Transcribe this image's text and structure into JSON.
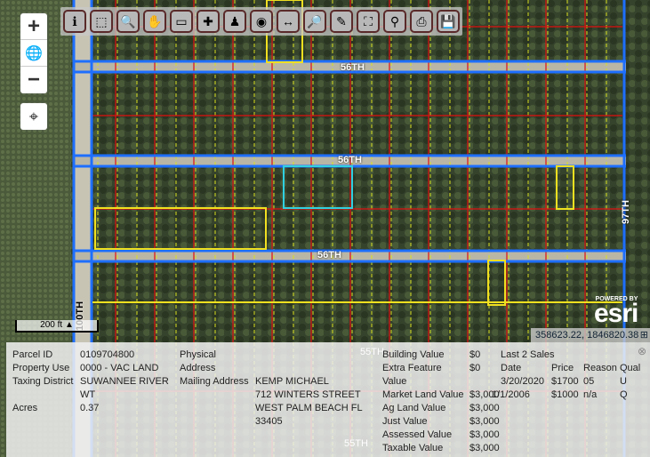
{
  "toolbar": {
    "buttons": [
      {
        "name": "info-icon",
        "glyph": "ℹ"
      },
      {
        "name": "select-icon",
        "glyph": "⬚"
      },
      {
        "name": "zoom-in-icon",
        "glyph": "🔍"
      },
      {
        "name": "pan-hand-icon",
        "glyph": "✋"
      },
      {
        "name": "eraser-icon",
        "glyph": "▭"
      },
      {
        "name": "add-selection-icon",
        "glyph": "✚"
      },
      {
        "name": "street-view-icon",
        "glyph": "♟"
      },
      {
        "name": "globe-icon",
        "glyph": "◉"
      },
      {
        "name": "measure-icon",
        "glyph": "↔"
      },
      {
        "name": "zoom-xy-icon",
        "glyph": "🔎"
      },
      {
        "name": "pencil-icon",
        "glyph": "✎"
      },
      {
        "name": "full-extent-icon",
        "glyph": "⛶"
      },
      {
        "name": "find-icon",
        "glyph": "⚲"
      },
      {
        "name": "print-icon",
        "glyph": "⎙"
      },
      {
        "name": "save-icon",
        "glyph": "💾"
      }
    ]
  },
  "zoom": {
    "plus": "+",
    "globe": "🌐",
    "minus": "−",
    "locate": "⌖"
  },
  "roads": {
    "r1": "56TH",
    "r2": "56TH",
    "r3": "56TH",
    "r4": "97TH",
    "r5": "100TH",
    "r6": "55TH",
    "r7": "55TH"
  },
  "scale": "200 ft",
  "attribution": {
    "powered": "POWERED BY",
    "logo": "esri"
  },
  "coordinates": "358623.22, 1846820.38",
  "coords_toggle": "⊞",
  "panel": {
    "labels": {
      "parcel_id": "Parcel ID",
      "property_use": "Property Use",
      "taxing_district": "Taxing District",
      "acres": "Acres",
      "physical_1": "Physical",
      "physical_2": "Address",
      "mailing": "Mailing Address"
    },
    "values": {
      "parcel_id": "0109704800",
      "property_use": "0000 - VAC LAND",
      "taxing_1": "SUWANNEE RIVER",
      "taxing_2": "WT",
      "acres": "0.37",
      "mail_1": "KEMP MICHAEL",
      "mail_2": "712 WINTERS STREET",
      "mail_3": "WEST PALM BEACH FL",
      "mail_4": "33405"
    },
    "valuation": [
      {
        "label": "Building Value",
        "value": "$0"
      },
      {
        "label": "Extra Feature",
        "value": "$0"
      },
      {
        "label": "Value",
        "value": ""
      },
      {
        "label": "Market Land Value",
        "value": "$3,000"
      },
      {
        "label": "Ag Land Value",
        "value": "$3,000"
      },
      {
        "label": "Just Value",
        "value": "$3,000"
      },
      {
        "label": "Assessed Value",
        "value": "$3,000"
      },
      {
        "label": "Taxable Value",
        "value": "$3,000"
      }
    ],
    "sales": {
      "title": "Last 2 Sales",
      "headers": [
        "Date",
        "Price",
        "Reason",
        "Qual"
      ],
      "rows": [
        [
          "3/20/2020",
          "$1700",
          "05",
          "U"
        ],
        [
          "1/1/2006",
          "$1000",
          "n/a",
          "Q"
        ]
      ]
    },
    "close": "⊗"
  },
  "colors": {
    "road_line": "#1e6fff",
    "parcel_line": "#e01010",
    "lot_line": "#d8e020",
    "selected": "#30d0e0",
    "highlight": "#f0e020"
  }
}
